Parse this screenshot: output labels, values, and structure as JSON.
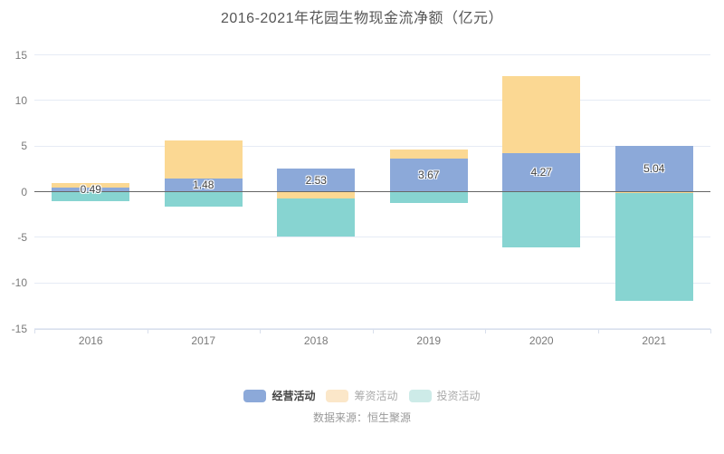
{
  "title": "2016-2021年花园生物现金流净额（亿元）",
  "source_note": "数据来源：恒生聚源",
  "legend": {
    "items": [
      {
        "label": "经营活动",
        "swatch": "#8CA9D9",
        "text_color": "#444444",
        "bold": true
      },
      {
        "label": "筹资活动",
        "swatch": "#FBE7C9",
        "text_color": "#AAAAAA",
        "bold": false
      },
      {
        "label": "投资活动",
        "swatch": "#CDEBE8",
        "text_color": "#AAAAAA",
        "bold": false
      }
    ]
  },
  "chart_data": {
    "type": "bar",
    "stacked": true,
    "title": "2016-2021年花园生物现金流净额（亿元）",
    "categories": [
      "2016",
      "2017",
      "2018",
      "2019",
      "2020",
      "2021"
    ],
    "series": [
      {
        "name": "经营活动",
        "key": "operating",
        "color": "#8CA9D9",
        "values": [
          0.49,
          1.48,
          2.53,
          3.67,
          4.27,
          5.04
        ],
        "data_labels": [
          "0.49",
          "1.48",
          "2.53",
          "3.67",
          "4.27",
          "5.04"
        ]
      },
      {
        "name": "筹资活动",
        "key": "financing",
        "color": "#FBD893",
        "values": [
          0.43,
          4.15,
          -0.75,
          0.9,
          8.38,
          -0.12
        ]
      },
      {
        "name": "投资活动",
        "key": "investing",
        "color": "#87D4D1",
        "values": [
          -1.05,
          -1.66,
          -4.16,
          -1.22,
          -6.06,
          -11.85
        ]
      }
    ],
    "ylim": [
      -15,
      15
    ],
    "ytick_step": 5,
    "grid": true,
    "legend_position": "bottom",
    "axis_colors": {
      "grid": "#E6EBF5",
      "zero_line": "#666666",
      "axis_line": "#DDE3EE",
      "tick_label": "#777777"
    }
  }
}
